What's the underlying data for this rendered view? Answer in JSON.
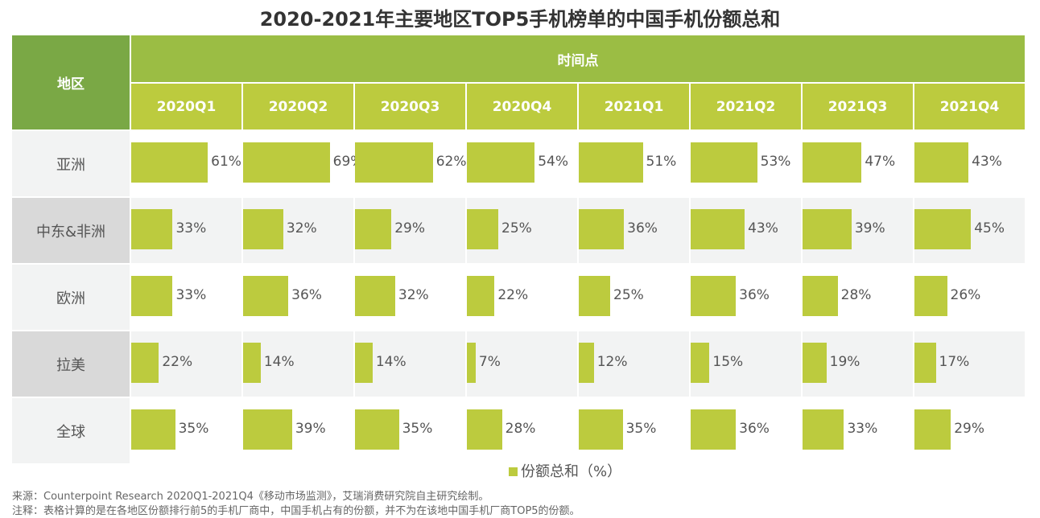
{
  "title": "2020-2021年主要地区TOP5手机榜单的中国手机份额总和",
  "chart_data": {
    "type": "table",
    "title": "2020-2021年主要地区TOP5手机榜单的中国手机份额总和",
    "row_header": "地区",
    "column_group_header": "时间点",
    "categories": [
      "2020Q1",
      "2020Q2",
      "2020Q3",
      "2020Q4",
      "2021Q1",
      "2021Q2",
      "2021Q3",
      "2021Q4"
    ],
    "rows": [
      {
        "name": "亚洲",
        "values": [
          61,
          69,
          62,
          54,
          51,
          53,
          47,
          43
        ]
      },
      {
        "name": "中东&非洲",
        "values": [
          33,
          32,
          29,
          25,
          36,
          43,
          39,
          45
        ]
      },
      {
        "name": "欧洲",
        "values": [
          33,
          36,
          32,
          22,
          25,
          36,
          28,
          26
        ]
      },
      {
        "name": "拉美",
        "values": [
          22,
          14,
          14,
          7,
          12,
          15,
          19,
          17
        ]
      },
      {
        "name": "全球",
        "values": [
          35,
          39,
          35,
          28,
          35,
          36,
          33,
          29
        ]
      }
    ],
    "unit": "%",
    "legend": "份额总和（%）",
    "bar_color": "#bccb3e"
  },
  "footer": {
    "source": "来源：Counterpoint Research 2020Q1-2021Q4《移动市场监测》，艾瑞消费研究院自主研究绘制。",
    "note": "注释：表格计算的是在各地区份额排行前5的手机厂商中，中国手机占有的份额，并不为在该地中国手机厂商TOP5的份额。"
  }
}
